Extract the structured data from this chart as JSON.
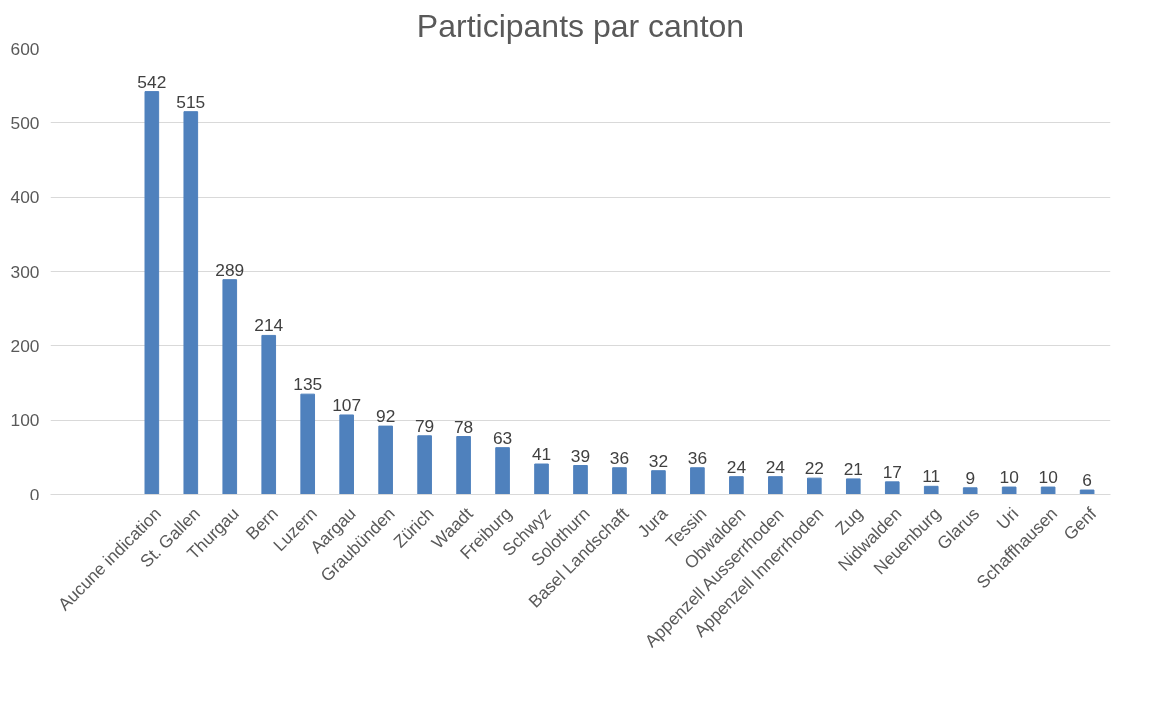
{
  "chart_data": {
    "type": "bar",
    "title": "Participants par canton",
    "categories": [
      "Aucune indication",
      "St. Gallen",
      "Thurgau",
      "Bern",
      "Luzern",
      "Aargau",
      "Graubünden",
      "Zürich",
      "Waadt",
      "Freiburg",
      "Schwyz",
      "Solothurn",
      "Basel Landschaft",
      "Jura",
      "Tessin",
      "Obwalden",
      "Appenzell Ausserrhoden",
      "Appenzell Innerrhoden",
      "Zug",
      "Nidwalden",
      "Neuenburg",
      "Glarus",
      "Uri",
      "Schaffhausen",
      "Genf"
    ],
    "values": [
      542,
      515,
      289,
      214,
      135,
      107,
      92,
      79,
      78,
      63,
      41,
      39,
      36,
      32,
      36,
      24,
      24,
      22,
      21,
      17,
      11,
      9,
      10,
      10,
      6
    ],
    "color": "#4f81bd",
    "ylim": [
      0,
      600
    ],
    "yticks": [
      0,
      100,
      200,
      300,
      400,
      500,
      600
    ],
    "grid": "y",
    "data_labels": true
  }
}
